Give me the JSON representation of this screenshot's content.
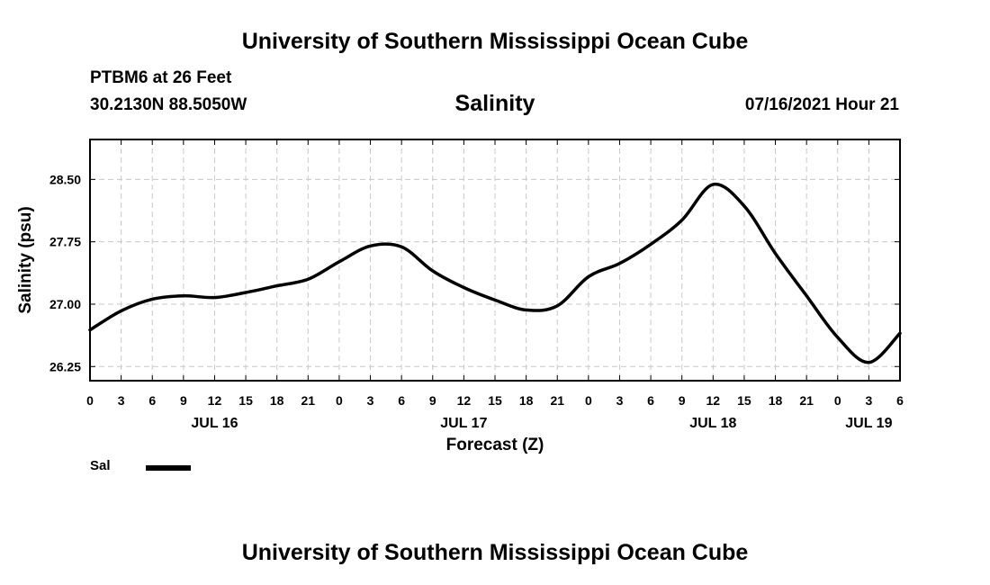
{
  "header": {
    "title": "University of Southern Mississippi Ocean Cube",
    "station": "PTBM6 at 26 Feet",
    "coords": "30.2130N  88.5050W",
    "parameter": "Salinity",
    "datetime": "07/16/2021 Hour 21"
  },
  "footer": {
    "title": "University of Southern Mississippi Ocean Cube"
  },
  "legend": {
    "label": "Sal",
    "color": "#000000"
  },
  "chart_data": {
    "type": "line",
    "title": "Salinity",
    "xlabel": "Forecast (Z)",
    "ylabel": "Salinity (psu)",
    "x_unit": "hours since JUL 16 00Z",
    "xlim": [
      0,
      78
    ],
    "ylim": [
      26.08,
      28.98
    ],
    "x_ticks": [
      {
        "x": 0,
        "label": "0"
      },
      {
        "x": 3,
        "label": "3"
      },
      {
        "x": 6,
        "label": "6"
      },
      {
        "x": 9,
        "label": "9"
      },
      {
        "x": 12,
        "label": "12"
      },
      {
        "x": 15,
        "label": "15"
      },
      {
        "x": 18,
        "label": "18"
      },
      {
        "x": 21,
        "label": "21"
      },
      {
        "x": 24,
        "label": "0"
      },
      {
        "x": 27,
        "label": "3"
      },
      {
        "x": 30,
        "label": "6"
      },
      {
        "x": 33,
        "label": "9"
      },
      {
        "x": 36,
        "label": "12"
      },
      {
        "x": 39,
        "label": "15"
      },
      {
        "x": 42,
        "label": "18"
      },
      {
        "x": 45,
        "label": "21"
      },
      {
        "x": 48,
        "label": "0"
      },
      {
        "x": 51,
        "label": "3"
      },
      {
        "x": 54,
        "label": "6"
      },
      {
        "x": 57,
        "label": "9"
      },
      {
        "x": 60,
        "label": "12"
      },
      {
        "x": 63,
        "label": "15"
      },
      {
        "x": 66,
        "label": "18"
      },
      {
        "x": 69,
        "label": "21"
      },
      {
        "x": 72,
        "label": "0"
      },
      {
        "x": 75,
        "label": "3"
      },
      {
        "x": 78,
        "label": "6"
      }
    ],
    "date_labels": [
      {
        "x": 12,
        "label": "JUL 16"
      },
      {
        "x": 36,
        "label": "JUL 17"
      },
      {
        "x": 60,
        "label": "JUL 18"
      },
      {
        "x": 75,
        "label": "JUL 19"
      }
    ],
    "y_ticks": [
      26.25,
      27.0,
      27.75,
      28.5
    ],
    "y_tick_labels": [
      "26.25",
      "27.00",
      "27.75",
      "28.50"
    ],
    "grid": true,
    "series": [
      {
        "name": "Sal",
        "x": [
          0,
          3,
          6,
          9,
          12,
          15,
          18,
          21,
          24,
          27,
          30,
          33,
          36,
          39,
          42,
          45,
          48,
          51,
          54,
          57,
          60,
          63,
          66,
          69,
          72,
          75,
          78
        ],
        "values": [
          26.69,
          26.92,
          27.06,
          27.1,
          27.08,
          27.14,
          27.22,
          27.3,
          27.51,
          27.7,
          27.69,
          27.4,
          27.2,
          27.05,
          26.93,
          26.98,
          27.33,
          27.49,
          27.72,
          28.01,
          28.44,
          28.18,
          27.61,
          27.1,
          26.6,
          26.3,
          26.65
        ]
      }
    ]
  }
}
